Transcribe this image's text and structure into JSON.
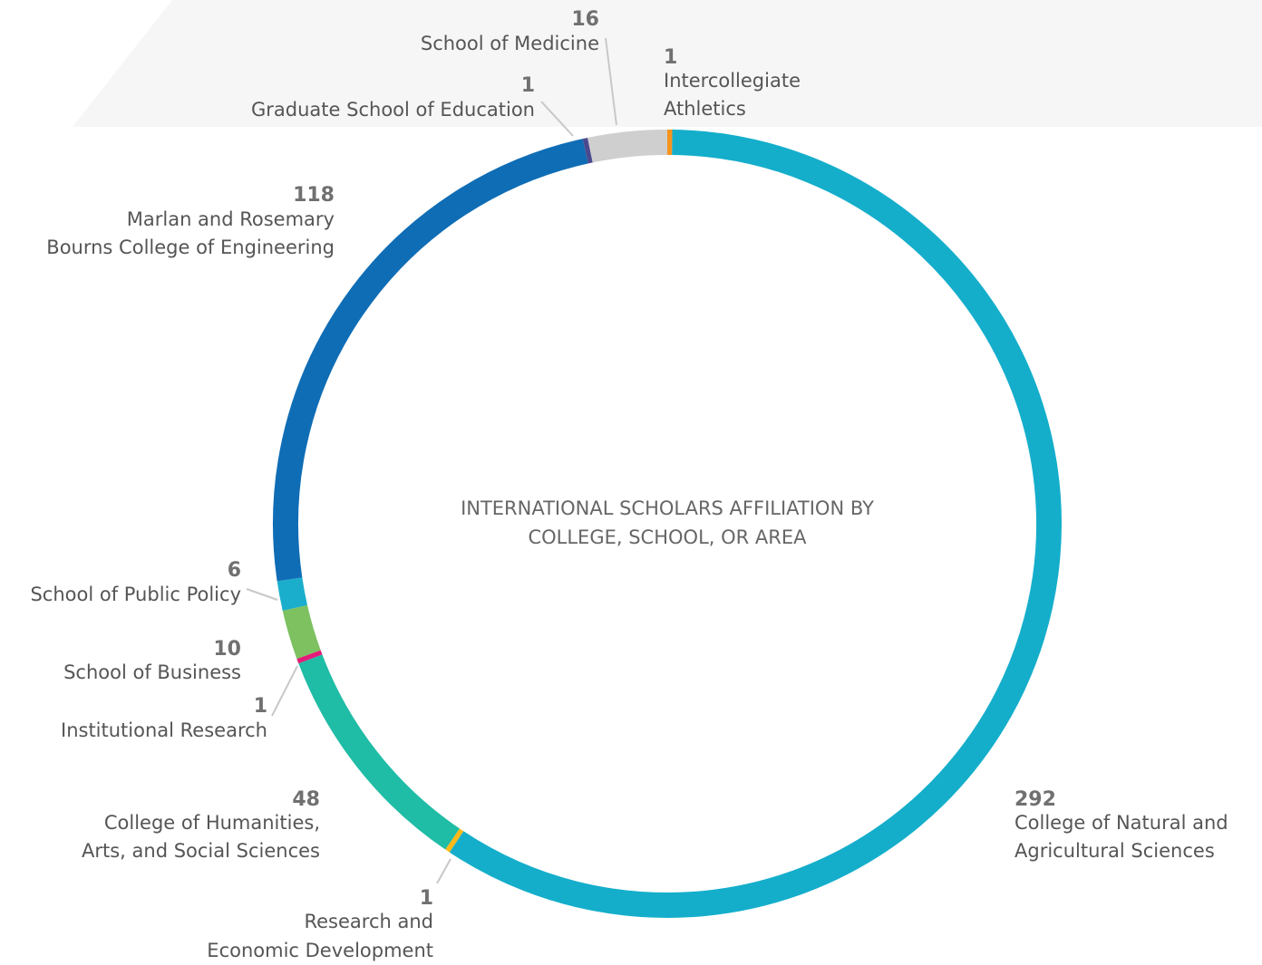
{
  "chart_data": {
    "type": "pie",
    "title": "INTERNATIONAL SCHOLARS AFFILIATION BY COLLEGE, SCHOOL, OR AREA",
    "categories": [
      "Intercollegiate Athletics",
      "College of Natural and Agricultural Sciences",
      "Research and Economic Development",
      "College of Humanities, Arts, and Social Sciences",
      "Institutional Research",
      "School of Business",
      "School of Public Policy",
      "Marlan and Rosemary Bourns College of Engineering",
      "Graduate School of Education",
      "School of Medicine"
    ],
    "values": [
      1,
      292,
      1,
      48,
      1,
      10,
      6,
      118,
      1,
      16
    ],
    "colors": [
      "#f7941d",
      "#14aecb",
      "#fbb91a",
      "#1fbca6",
      "#e31c79",
      "#7dc160",
      "#1aaecc",
      "#0f6db5",
      "#4b4a8f",
      "#cfcfcf"
    ]
  }
}
